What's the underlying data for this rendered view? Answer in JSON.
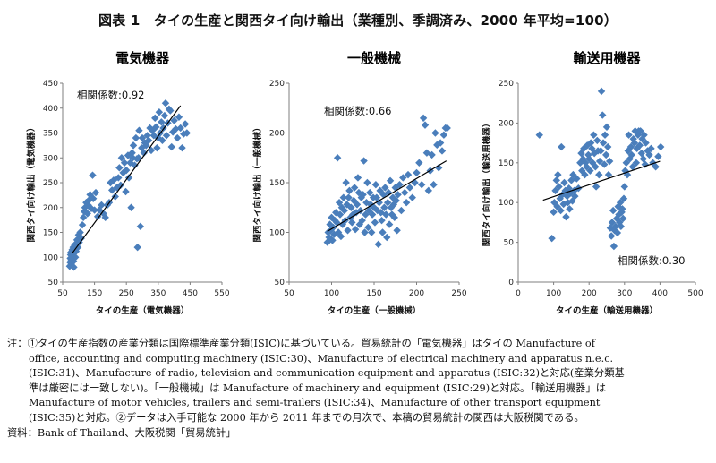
{
  "figure": {
    "title": "図表 1　タイの生産と関西タイ向け輸出（業種別、季調済み、2000 年平均=100）"
  },
  "notes": {
    "line1": "注：①タイの生産指数の産業分類は国際標準産業分類(ISIC)に基づいている。貿易統計の「電気機器」はタイの Manufacture of",
    "line2": "office, accounting and computing machinery (ISIC:30)、Manufacture of electrical machinery and apparatus n.e.c.",
    "line3": "(ISIC:31)、Manufacture of radio, television and communication equipment and apparatus (ISIC:32)と対応(産業分類基",
    "line4": "準は厳密には一致しない)。「一般機械」は Manufacture of machinery and equipment (ISIC:29)と対応。「輸送用機器」は",
    "line5": "Manufacture of motor vehicles, trailers and semi-trailers (ISIC:34)、Manufacture of other transport equipment",
    "line6": "(ISIC:35)と対応。②データは入手可能な 2000 年から 2011 年までの月次で、本稿の貿易統計の関西は大阪税関である。",
    "source": "資料：Bank of Thailand、大阪税関「貿易統計」"
  },
  "colors": {
    "marker": "#4a7ebb",
    "trend": "#000000",
    "axis": "#7f7f7f"
  },
  "chart_data": [
    {
      "type": "scatter",
      "title": "電気機器",
      "xlabel": "タイの生産（電気機器）",
      "ylabel": "関西タイ向け輸出（電気機器）",
      "xlim": [
        50,
        550
      ],
      "ylim": [
        50,
        450
      ],
      "xticks": [
        50,
        150,
        250,
        350,
        450,
        550
      ],
      "yticks": [
        50,
        100,
        150,
        200,
        250,
        300,
        350,
        400,
        450
      ],
      "correlation_label": "相関係数:0.92",
      "trendline": [
        [
          80,
          108
        ],
        [
          420,
          405
        ]
      ],
      "points": [
        [
          72,
          82
        ],
        [
          73,
          90
        ],
        [
          74,
          98
        ],
        [
          75,
          105
        ],
        [
          76,
          110
        ],
        [
          77,
          95
        ],
        [
          78,
          88
        ],
        [
          79,
          100
        ],
        [
          80,
          115
        ],
        [
          82,
          104
        ],
        [
          83,
          120
        ],
        [
          84,
          92
        ],
        [
          85,
          80
        ],
        [
          86,
          108
        ],
        [
          88,
          125
        ],
        [
          90,
          100
        ],
        [
          92,
          112
        ],
        [
          95,
          135
        ],
        [
          98,
          120
        ],
        [
          100,
          145
        ],
        [
          102,
          130
        ],
        [
          105,
          150
        ],
        [
          108,
          138
        ],
        [
          112,
          165
        ],
        [
          115,
          180
        ],
        [
          118,
          192
        ],
        [
          120,
          200
        ],
        [
          124,
          210
        ],
        [
          128,
          188
        ],
        [
          130,
          205
        ],
        [
          133,
          215
        ],
        [
          136,
          226
        ],
        [
          140,
          198
        ],
        [
          144,
          265
        ],
        [
          146,
          218
        ],
        [
          150,
          195
        ],
        [
          154,
          230
        ],
        [
          160,
          182
        ],
        [
          165,
          195
        ],
        [
          172,
          205
        ],
        [
          178,
          188
        ],
        [
          184,
          180
        ],
        [
          190,
          205
        ],
        [
          196,
          210
        ],
        [
          200,
          250
        ],
        [
          205,
          235
        ],
        [
          210,
          255
        ],
        [
          215,
          222
        ],
        [
          220,
          240
        ],
        [
          225,
          260
        ],
        [
          228,
          280
        ],
        [
          232,
          245
        ],
        [
          235,
          300
        ],
        [
          240,
          270
        ],
        [
          244,
          290
        ],
        [
          248,
          232
        ],
        [
          250,
          275
        ],
        [
          255,
          305
        ],
        [
          258,
          260
        ],
        [
          262,
          290
        ],
        [
          265,
          200
        ],
        [
          268,
          310
        ],
        [
          270,
          300
        ],
        [
          272,
          325
        ],
        [
          276,
          285
        ],
        [
          280,
          340
        ],
        [
          283,
          298
        ],
        [
          285,
          120
        ],
        [
          288,
          300
        ],
        [
          290,
          355
        ],
        [
          294,
          162
        ],
        [
          298,
          320
        ],
        [
          300,
          340
        ],
        [
          305,
          310
        ],
        [
          308,
          330
        ],
        [
          312,
          325
        ],
        [
          316,
          345
        ],
        [
          320,
          335
        ],
        [
          324,
          360
        ],
        [
          328,
          315
        ],
        [
          332,
          355
        ],
        [
          336,
          345
        ],
        [
          340,
          380
        ],
        [
          343,
          362
        ],
        [
          346,
          320
        ],
        [
          350,
          340
        ],
        [
          353,
          392
        ],
        [
          356,
          350
        ],
        [
          360,
          372
        ],
        [
          363,
          335
        ],
        [
          366,
          360
        ],
        [
          370,
          385
        ],
        [
          373,
          410
        ],
        [
          376,
          345
        ],
        [
          380,
          370
        ],
        [
          384,
          398
        ],
        [
          388,
          395
        ],
        [
          392,
          322
        ],
        [
          396,
          352
        ],
        [
          400,
          375
        ],
        [
          405,
          358
        ],
        [
          410,
          340
        ],
        [
          415,
          382
        ],
        [
          420,
          360
        ],
        [
          425,
          320
        ],
        [
          430,
          348
        ],
        [
          435,
          368
        ],
        [
          440,
          350
        ]
      ]
    },
    {
      "type": "scatter",
      "title": "一般機械",
      "xlabel": "タイの生産（一般機械）",
      "ylabel": "関西タイ向け輸出（一般機械）",
      "xlim": [
        50,
        250
      ],
      "ylim": [
        50,
        250
      ],
      "xticks": [
        50,
        100,
        150,
        200,
        250
      ],
      "yticks": [
        50,
        100,
        150,
        200,
        250
      ],
      "correlation_label": "相関係数:0.66",
      "trendline": [
        [
          95,
          101
        ],
        [
          235,
          172
        ]
      ],
      "points": [
        [
          95,
          90
        ],
        [
          96,
          100
        ],
        [
          97,
          95
        ],
        [
          98,
          108
        ],
        [
          99,
          102
        ],
        [
          100,
          115
        ],
        [
          101,
          92
        ],
        [
          102,
          105
        ],
        [
          103,
          98
        ],
        [
          104,
          112
        ],
        [
          105,
          120
        ],
        [
          106,
          110
        ],
        [
          107,
          175
        ],
        [
          108,
          100
        ],
        [
          109,
          130
        ],
        [
          110,
          118
        ],
        [
          111,
          96
        ],
        [
          112,
          125
        ],
        [
          113,
          108
        ],
        [
          114,
          135
        ],
        [
          115,
          122
        ],
        [
          116,
          112
        ],
        [
          117,
          150
        ],
        [
          118,
          128
        ],
        [
          119,
          102
        ],
        [
          120,
          135
        ],
        [
          121,
          142
        ],
        [
          122,
          115
        ],
        [
          123,
          125
        ],
        [
          124,
          110
        ],
        [
          125,
          118
        ],
        [
          126,
          132
        ],
        [
          127,
          145
        ],
        [
          128,
          103
        ],
        [
          129,
          120
        ],
        [
          130,
          128
        ],
        [
          131,
          155
        ],
        [
          132,
          140
        ],
        [
          133,
          108
        ],
        [
          134,
          122
        ],
        [
          135,
          135
        ],
        [
          136,
          112
        ],
        [
          137,
          138
        ],
        [
          138,
          172
        ],
        [
          139,
          100
        ],
        [
          140,
          118
        ],
        [
          141,
          130
        ],
        [
          142,
          150
        ],
        [
          143,
          105
        ],
        [
          144,
          122
        ],
        [
          145,
          140
        ],
        [
          146,
          128
        ],
        [
          147,
          100
        ],
        [
          148,
          118
        ],
        [
          149,
          135
        ],
        [
          150,
          125
        ],
        [
          151,
          110
        ],
        [
          152,
          148
        ],
        [
          153,
          135
        ],
        [
          154,
          122
        ],
        [
          155,
          88
        ],
        [
          156,
          130
        ],
        [
          157,
          142
        ],
        [
          158,
          120
        ],
        [
          159,
          112
        ],
        [
          160,
          100
        ],
        [
          161,
          138
        ],
        [
          162,
          125
        ],
        [
          163,
          145
        ],
        [
          164,
          118
        ],
        [
          165,
          95
        ],
        [
          166,
          130
        ],
        [
          167,
          140
        ],
        [
          168,
          108
        ],
        [
          169,
          152
        ],
        [
          170,
          125
        ],
        [
          171,
          118
        ],
        [
          172,
          135
        ],
        [
          173,
          128
        ],
        [
          174,
          115
        ],
        [
          175,
          145
        ],
        [
          176,
          132
        ],
        [
          177,
          102
        ],
        [
          178,
          138
        ],
        [
          180,
          148
        ],
        [
          182,
          122
        ],
        [
          184,
          155
        ],
        [
          186,
          140
        ],
        [
          188,
          130
        ],
        [
          190,
          158
        ],
        [
          192,
          145
        ],
        [
          195,
          135
        ],
        [
          198,
          150
        ],
        [
          200,
          160
        ],
        [
          203,
          170
        ],
        [
          206,
          148
        ],
        [
          208,
          215
        ],
        [
          210,
          208
        ],
        [
          212,
          180
        ],
        [
          214,
          142
        ],
        [
          216,
          162
        ],
        [
          218,
          178
        ],
        [
          220,
          148
        ],
        [
          222,
          200
        ],
        [
          224,
          188
        ],
        [
          226,
          165
        ],
        [
          228,
          190
        ],
        [
          230,
          182
        ],
        [
          232,
          198
        ],
        [
          234,
          205
        ],
        [
          236,
          205
        ]
      ]
    },
    {
      "type": "scatter",
      "title": "輸送用機器",
      "xlabel": "タイの生産（輸送用機器）",
      "ylabel": "関西タイ向け輸出（輸送用機器）",
      "xlim": [
        0,
        500
      ],
      "ylim": [
        0,
        250
      ],
      "xticks": [
        0,
        100,
        200,
        300,
        400,
        500
      ],
      "yticks": [
        0,
        50,
        100,
        150,
        200,
        250
      ],
      "correlation_label": "相関係数:0.30",
      "trendline": [
        [
          70,
          103
        ],
        [
          400,
          152
        ]
      ],
      "points": [
        [
          60,
          185
        ],
        [
          95,
          55
        ],
        [
          100,
          88
        ],
        [
          102,
          100
        ],
        [
          105,
          115
        ],
        [
          108,
          128
        ],
        [
          110,
          95
        ],
        [
          112,
          135
        ],
        [
          115,
          120
        ],
        [
          118,
          105
        ],
        [
          120,
          90
        ],
        [
          122,
          170
        ],
        [
          125,
          110
        ],
        [
          128,
          98
        ],
        [
          130,
          125
        ],
        [
          133,
          115
        ],
        [
          135,
          82
        ],
        [
          138,
          108
        ],
        [
          140,
          100
        ],
        [
          143,
          118
        ],
        [
          145,
          92
        ],
        [
          148,
          112
        ],
        [
          150,
          128
        ],
        [
          153,
          102
        ],
        [
          155,
          135
        ],
        [
          158,
          115
        ],
        [
          160,
          108
        ],
        [
          165,
          130
        ],
        [
          170,
          118
        ],
        [
          175,
          150
        ],
        [
          178,
          162
        ],
        [
          180,
          140
        ],
        [
          183,
          155
        ],
        [
          185,
          168
        ],
        [
          188,
          135
        ],
        [
          190,
          150
        ],
        [
          193,
          145
        ],
        [
          195,
          172
        ],
        [
          198,
          160
        ],
        [
          200,
          155
        ],
        [
          203,
          140
        ],
        [
          205,
          175
        ],
        [
          208,
          168
        ],
        [
          210,
          150
        ],
        [
          213,
          185
        ],
        [
          215,
          162
        ],
        [
          218,
          145
        ],
        [
          220,
          120
        ],
        [
          223,
          178
        ],
        [
          225,
          165
        ],
        [
          228,
          135
        ],
        [
          230,
          152
        ],
        [
          233,
          165
        ],
        [
          235,
          240
        ],
        [
          238,
          210
        ],
        [
          240,
          175
        ],
        [
          243,
          148
        ],
        [
          245,
          185
        ],
        [
          248,
          160
        ],
        [
          250,
          195
        ],
        [
          253,
          170
        ],
        [
          255,
          135
        ],
        [
          258,
          152
        ],
        [
          260,
          68
        ],
        [
          263,
          58
        ],
        [
          265,
          75
        ],
        [
          268,
          90
        ],
        [
          270,
          45
        ],
        [
          272,
          65
        ],
        [
          275,
          70
        ],
        [
          278,
          80
        ],
        [
          280,
          62
        ],
        [
          282,
          95
        ],
        [
          284,
          85
        ],
        [
          286,
          75
        ],
        [
          288,
          100
        ],
        [
          290,
          70
        ],
        [
          292,
          88
        ],
        [
          294,
          92
        ],
        [
          296,
          80
        ],
        [
          298,
          105
        ],
        [
          300,
          120
        ],
        [
          302,
          140
        ],
        [
          305,
          150
        ],
        [
          308,
          135
        ],
        [
          310,
          165
        ],
        [
          312,
          185
        ],
        [
          315,
          155
        ],
        [
          318,
          170
        ],
        [
          320,
          160
        ],
        [
          323,
          145
        ],
        [
          325,
          180
        ],
        [
          328,
          175
        ],
        [
          330,
          190
        ],
        [
          333,
          150
        ],
        [
          335,
          168
        ],
        [
          338,
          185
        ],
        [
          340,
          190
        ],
        [
          343,
          172
        ],
        [
          345,
          190
        ],
        [
          348,
          162
        ],
        [
          350,
          180
        ],
        [
          353,
          155
        ],
        [
          355,
          185
        ],
        [
          358,
          148
        ],
        [
          360,
          175
        ],
        [
          365,
          165
        ],
        [
          370,
          160
        ],
        [
          375,
          168
        ],
        [
          380,
          150
        ],
        [
          388,
          145
        ],
        [
          395,
          158
        ],
        [
          402,
          170
        ]
      ]
    }
  ]
}
